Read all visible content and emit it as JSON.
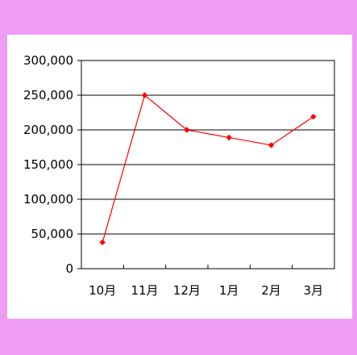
{
  "colors": {
    "frame_background": "#ee9cf6",
    "plot_background": "#ffffff",
    "line": "#ff0000",
    "axis": "#000000"
  },
  "chart_data": {
    "type": "line",
    "title": "",
    "xlabel": "",
    "ylabel": "",
    "categories": [
      "10月",
      "11月",
      "12月",
      "1月",
      "2月",
      "3月"
    ],
    "series": [
      {
        "values": [
          38000,
          250000,
          200000,
          189000,
          178000,
          219000
        ],
        "color": "#ff0000",
        "marker": "diamond"
      }
    ],
    "ylim": [
      0,
      300000
    ],
    "yticks": [
      0,
      50000,
      100000,
      150000,
      200000,
      250000,
      300000
    ],
    "ytick_labels": [
      "0",
      "50,000",
      "100,000",
      "150,000",
      "200,000",
      "250,000",
      "300,000"
    ],
    "grid": {
      "horizontal": true,
      "vertical": false
    },
    "legend": "none"
  }
}
